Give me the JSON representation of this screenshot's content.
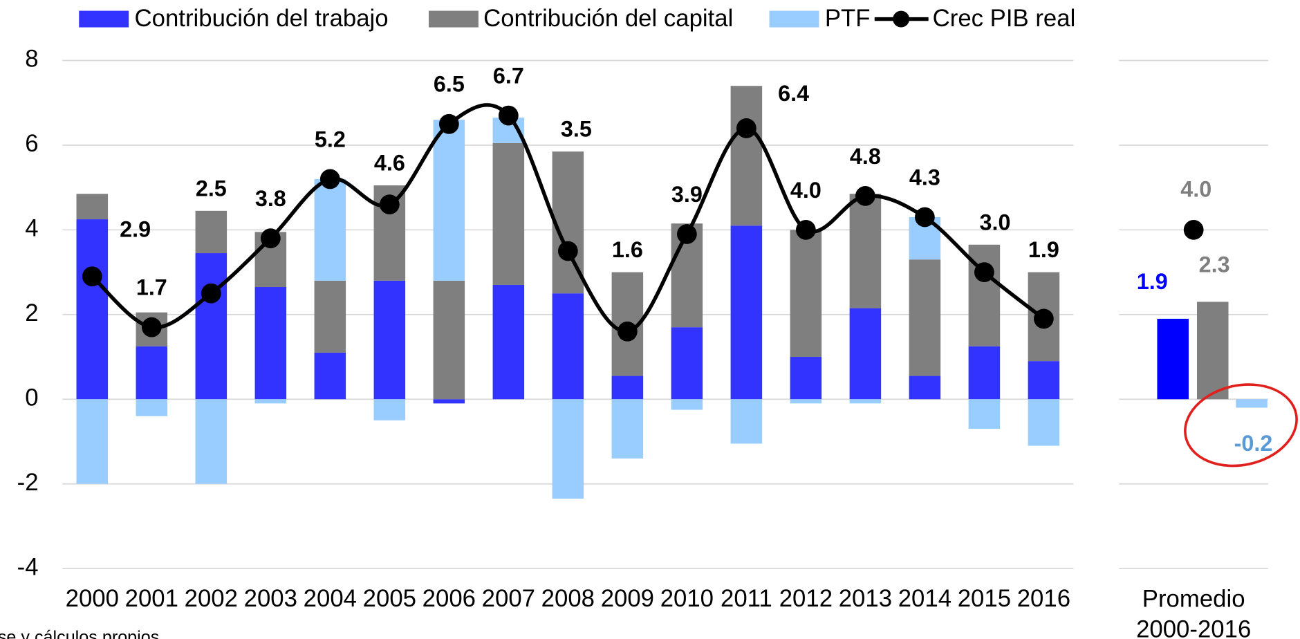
{
  "chart_data": [
    {
      "type": "bar",
      "stacked": true,
      "categories": [
        "2000",
        "2001",
        "2002",
        "2003",
        "2004",
        "2005",
        "2006",
        "2007",
        "2008",
        "2009",
        "2010",
        "2011",
        "2012",
        "2013",
        "2014",
        "2015",
        "2016"
      ],
      "series": [
        {
          "name": "Contribución del trabajo",
          "color": "#3333ff",
          "values": [
            4.25,
            1.25,
            3.45,
            2.65,
            1.1,
            2.8,
            -0.1,
            2.7,
            2.5,
            0.55,
            1.7,
            4.1,
            1.0,
            2.15,
            0.55,
            1.25,
            0.9
          ]
        },
        {
          "name": "Contribución del capital",
          "color": "#7f7f7f",
          "values": [
            0.6,
            0.8,
            1.0,
            1.3,
            1.7,
            2.25,
            2.8,
            3.35,
            3.35,
            2.45,
            2.45,
            3.3,
            3.0,
            2.7,
            2.75,
            2.4,
            2.1
          ]
        },
        {
          "name": "PTF",
          "color": "#99ccff",
          "values": [
            -2.0,
            -0.4,
            -2.0,
            -0.1,
            2.4,
            -0.5,
            3.8,
            0.6,
            -2.35,
            -1.4,
            -0.25,
            -1.05,
            -0.1,
            -0.1,
            1.0,
            -0.7,
            -1.1
          ]
        },
        {
          "name": "Crec PIB real",
          "type": "line",
          "color": "#000000",
          "values": [
            2.9,
            1.7,
            2.5,
            3.8,
            5.2,
            4.6,
            6.5,
            6.7,
            3.5,
            1.6,
            3.9,
            6.4,
            4.0,
            4.8,
            4.3,
            3.0,
            1.9
          ],
          "value_labels": [
            "2.9",
            "1.7",
            "2.5",
            "3.8",
            "5.2",
            "4.6",
            "6.5",
            "6.7",
            "3.5",
            "1.6",
            "3.9",
            "6.4",
            "4.0",
            "4.8",
            "4.3",
            "3.0",
            "1.9"
          ]
        }
      ],
      "ylim": [
        -4,
        8
      ],
      "yticks": [
        -4,
        -2,
        0,
        2,
        4,
        6,
        8
      ],
      "grid": true,
      "legend": "top"
    },
    {
      "type": "bar",
      "stacked": false,
      "categories": [
        "Promedio 2000-2016"
      ],
      "series": [
        {
          "name": "Contribución del trabajo",
          "color": "#0000ff",
          "values": [
            1.9
          ],
          "value_labels": [
            "1.9"
          ]
        },
        {
          "name": "Contribución del capital",
          "color": "#7f7f7f",
          "values": [
            2.3
          ],
          "value_labels": [
            "2.3"
          ]
        },
        {
          "name": "PTF",
          "color": "#99ccff",
          "values": [
            -0.2
          ],
          "value_labels": [
            "-0.2"
          ]
        },
        {
          "name": "Crec PIB real",
          "type": "line",
          "color": "#000000",
          "values": [
            4.0
          ],
          "value_labels": [
            "4.0"
          ]
        }
      ],
      "ylim": [
        -4,
        8
      ],
      "yticks": [
        -4,
        -2,
        0,
        2,
        4,
        6,
        8
      ],
      "grid": true
    },
    {
      "type": "note",
      "text": "se y cálculos propios"
    }
  ]
}
